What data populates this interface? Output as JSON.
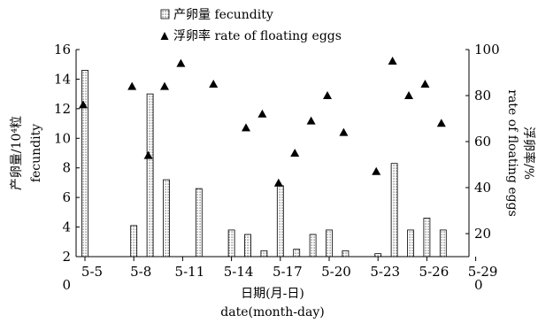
{
  "chart_data": {
    "type": "bar",
    "title": "",
    "xlabel": "日期(月-日)",
    "xlabel_en": "date(month-day)",
    "x_tick_labels": [
      "5-5",
      "5-8",
      "5-11",
      "5-14",
      "5-17",
      "5-20",
      "5-23",
      "5-26",
      "5-29"
    ],
    "y_left": {
      "label_cn": "产卵量/10⁴粒",
      "label_en": "fecundity",
      "ticks": [
        "0",
        "2",
        "4",
        "6",
        "8",
        "10",
        "12",
        "14",
        "16"
      ],
      "range": [
        0,
        16
      ]
    },
    "y_right": {
      "label_cn": "浮卵率/%",
      "label_en": "rate of floating eggs",
      "ticks": [
        "0",
        "20",
        "40",
        "60",
        "80",
        "100"
      ],
      "range": [
        0,
        100
      ]
    },
    "legend": {
      "placement": "top",
      "items": [
        {
          "marker": "hatched-bar",
          "label": "产卵量 fecundity"
        },
        {
          "marker": "triangle",
          "label": "浮卵率 rate of floating eggs"
        }
      ]
    },
    "series": [
      {
        "name": "产卵量 fecundity",
        "type": "bar",
        "axis": "left",
        "x": [
          5,
          8,
          9,
          10,
          12,
          14,
          15,
          16,
          17,
          18,
          19,
          20,
          21,
          23,
          24,
          25,
          26,
          27
        ],
        "values": [
          14.6,
          4.1,
          13.0,
          7.2,
          6.6,
          3.8,
          3.5,
          2.4,
          6.8,
          2.5,
          3.5,
          3.8,
          2.4,
          2.2,
          8.3,
          3.8,
          4.6,
          3.8
        ]
      },
      {
        "name": "浮卵率 rate of floating eggs",
        "type": "scatter",
        "marker": "triangle",
        "axis": "right",
        "x": [
          5,
          8,
          9,
          10,
          11,
          13,
          15,
          16,
          17,
          18,
          19,
          20,
          21,
          23,
          24,
          25,
          26,
          27
        ],
        "values": [
          76,
          84,
          54,
          84,
          94,
          85,
          66,
          72,
          42,
          55,
          69,
          80,
          64,
          47,
          95,
          80,
          85,
          68
        ]
      }
    ]
  }
}
